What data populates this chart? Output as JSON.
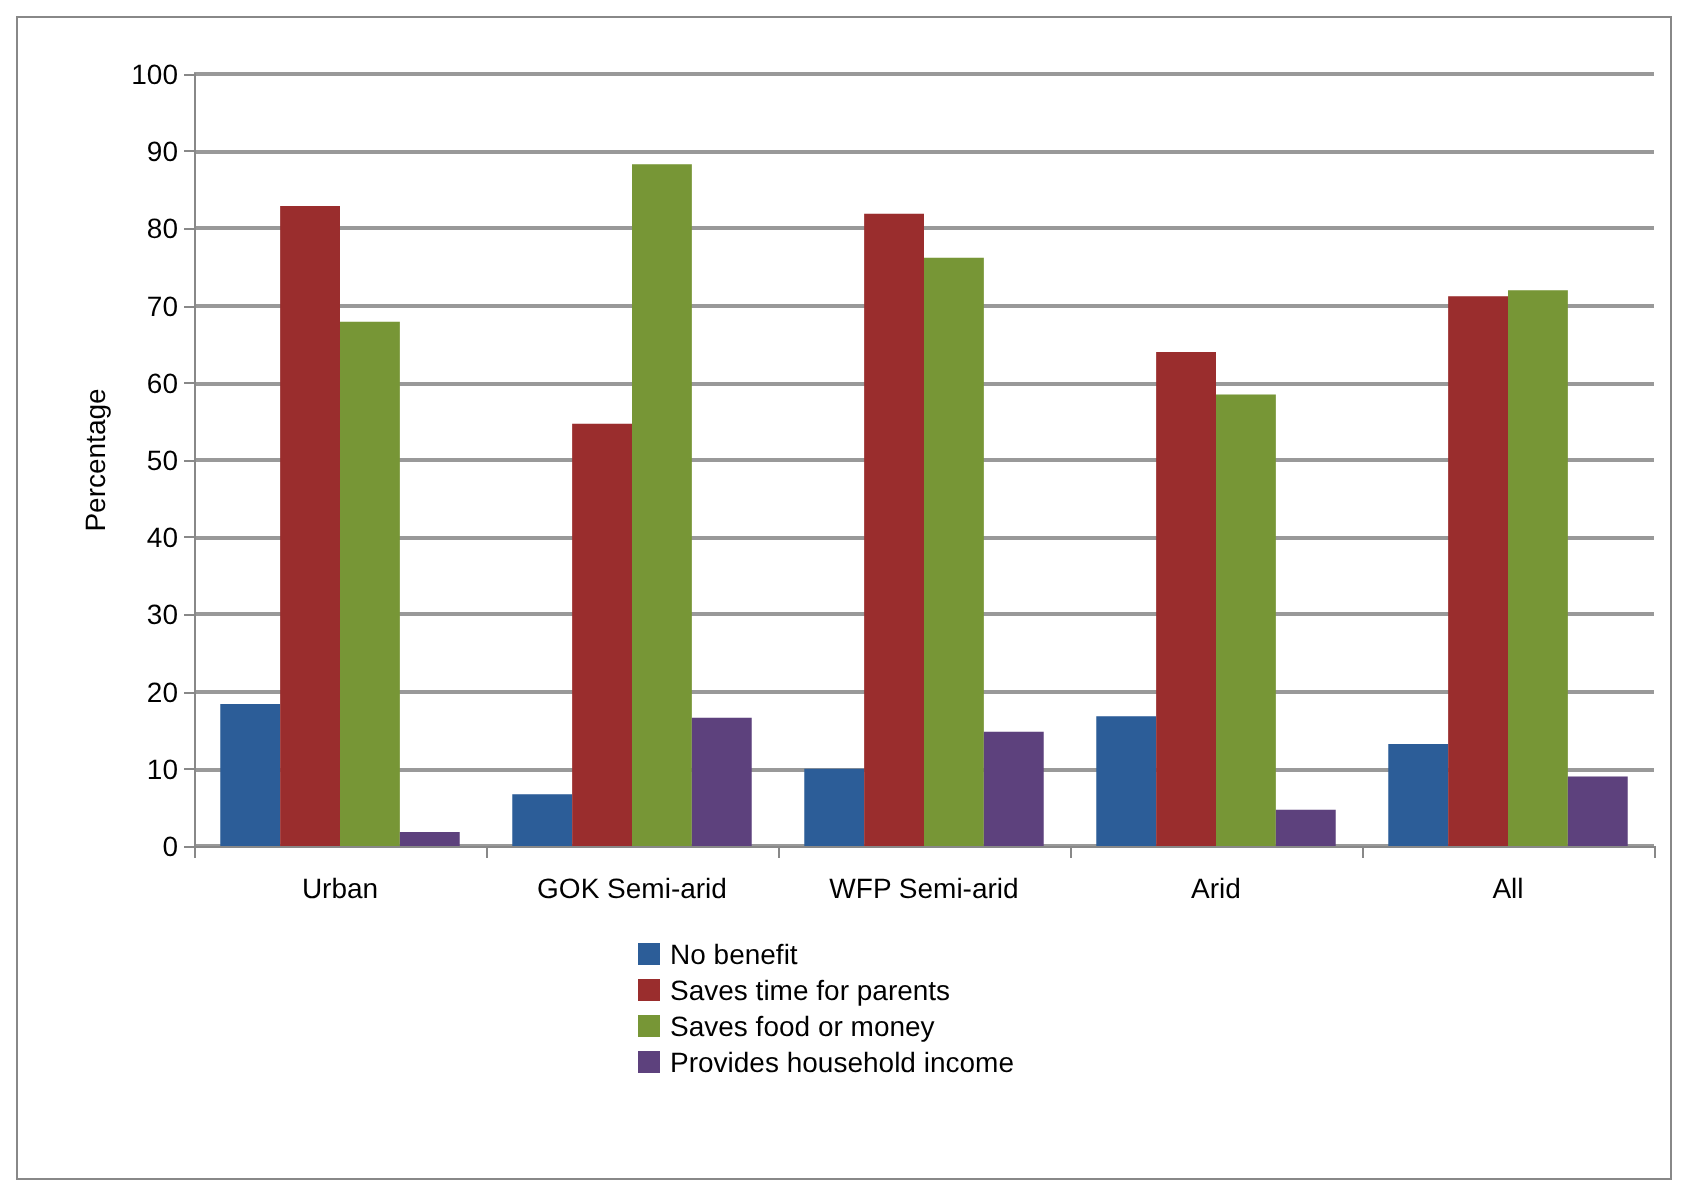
{
  "chart_data": {
    "type": "bar",
    "ylabel": "Percentage",
    "categories": [
      "Urban",
      "GOK Semi-arid",
      "WFP Semi-arid",
      "Arid",
      "All"
    ],
    "series": [
      {
        "name": "No benefit",
        "color": "#2c5d98",
        "values": [
          18.4,
          6.7,
          10.0,
          16.8,
          13.2
        ]
      },
      {
        "name": "Saves time for parents",
        "color": "#9a2d2d",
        "values": [
          82.9,
          54.7,
          81.9,
          64.0,
          71.2
        ]
      },
      {
        "name": "Saves food or money",
        "color": "#779636",
        "values": [
          67.9,
          88.3,
          76.2,
          58.5,
          72.0
        ]
      },
      {
        "name": "Provides household income",
        "color": "#5d417d",
        "values": [
          1.8,
          16.6,
          14.8,
          4.7,
          9.0
        ]
      }
    ],
    "ylim": [
      0,
      100
    ],
    "yticks": [
      0,
      10,
      20,
      30,
      40,
      50,
      60,
      70,
      80,
      90,
      100
    ],
    "grid": "y",
    "legend": "bottom"
  }
}
